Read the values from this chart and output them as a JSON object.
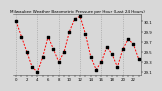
{
  "title": "Milwaukee Weather Barometric Pressure per Hour (Last 24 Hours)",
  "ylim": [
    29.05,
    30.25
  ],
  "yticks": [
    29.1,
    29.3,
    29.5,
    29.7,
    29.9,
    30.1
  ],
  "ytick_labels": [
    "29.1",
    "29.3",
    "29.5",
    "29.7",
    "29.9",
    "30.1"
  ],
  "line_color": "#ff0000",
  "marker_color": "#000000",
  "grid_color": "#999999",
  "bg_color": "#d8d8d8",
  "plot_bg": "#d8d8d8",
  "vgrid_positions": [
    0,
    4,
    8,
    12,
    16,
    20,
    24
  ],
  "hours": [
    0,
    1,
    2,
    3,
    4,
    5,
    6,
    7,
    8,
    9,
    10,
    11,
    12,
    13,
    14,
    15,
    16,
    17,
    18,
    19,
    20,
    21,
    22,
    23
  ],
  "pressure": [
    30.1,
    29.8,
    29.5,
    29.2,
    29.1,
    29.4,
    29.8,
    29.55,
    29.3,
    29.5,
    29.9,
    30.15,
    30.2,
    29.85,
    29.4,
    29.15,
    29.3,
    29.6,
    29.45,
    29.2,
    29.55,
    29.75,
    29.65,
    29.35
  ],
  "title_fontsize": 3.0,
  "tick_fontsize": 2.8,
  "linewidth": 0.7,
  "marker_size": 2.0
}
